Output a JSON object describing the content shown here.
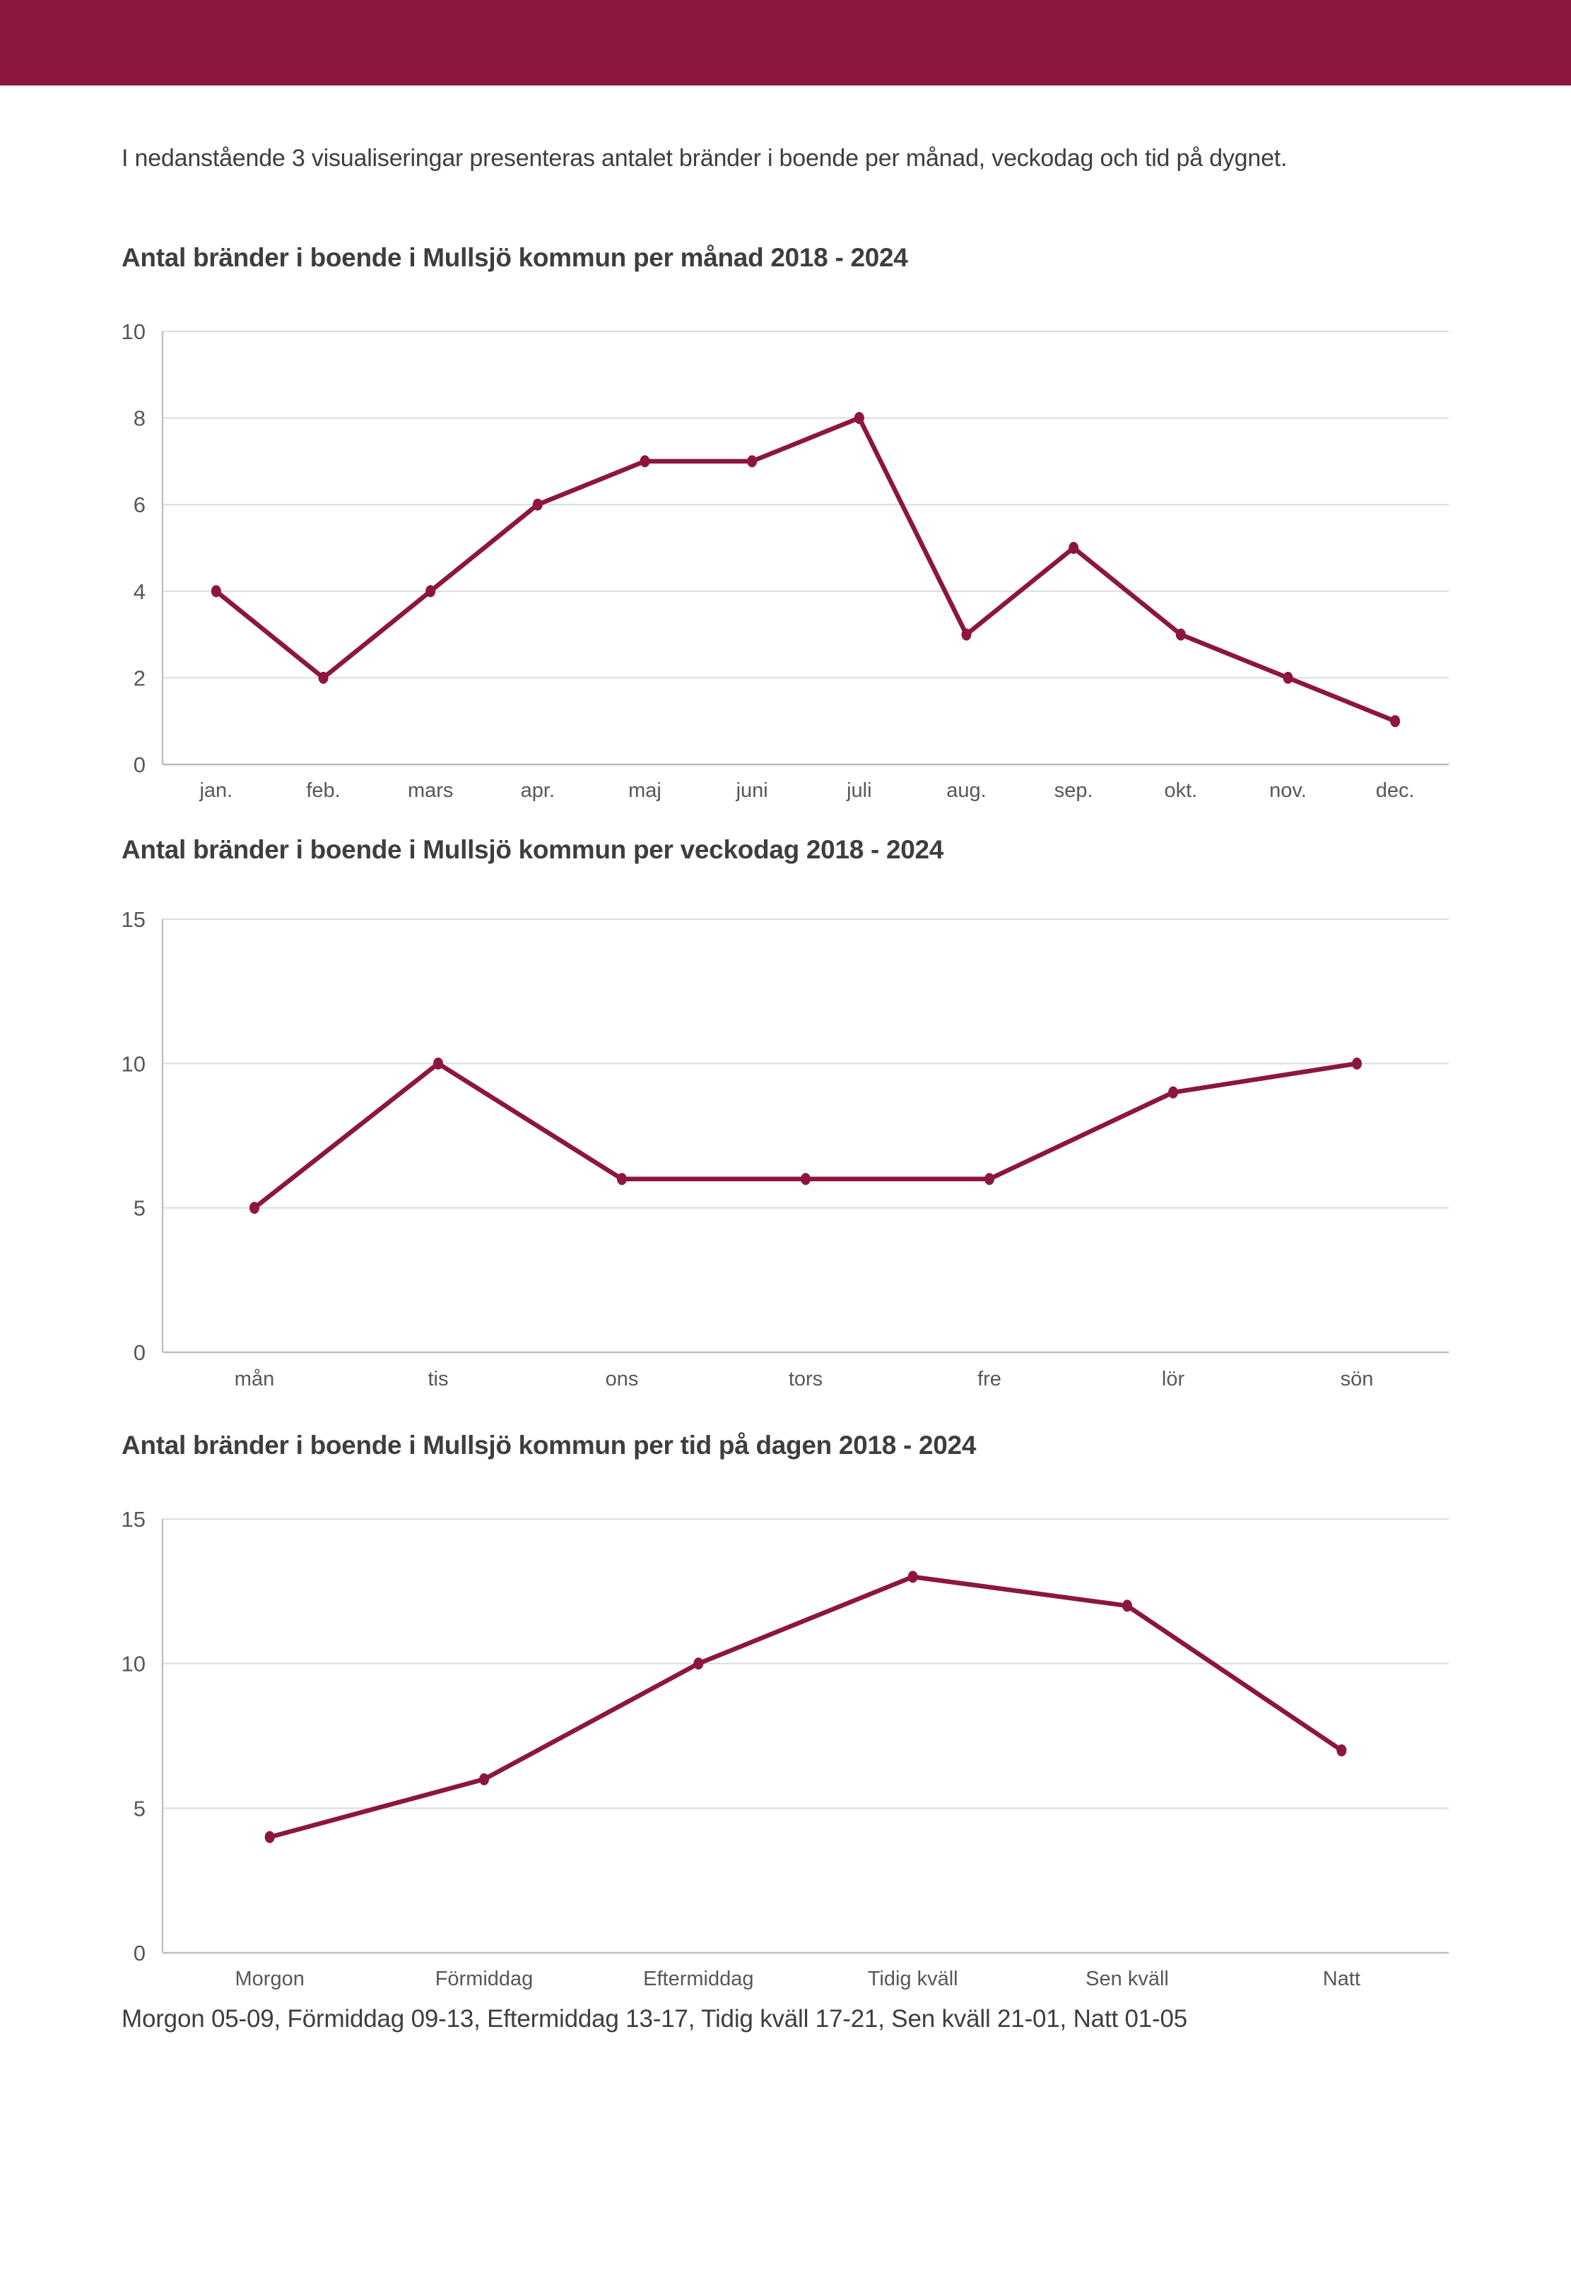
{
  "page": {
    "intro": "I nedanstående 3 visualiseringar presenteras antalet bränder i boende per månad, veckodag och tid på dygnet.",
    "footnote": "Morgon 05-09, Förmiddag 09-13, Eftermiddag 13-17, Tidig kväll 17-21, Sen kväll 21-01, Natt 01-05"
  },
  "colors": {
    "header_bar": "#8C163E",
    "line": "#8C163E",
    "point": "#8C163E",
    "grid": "#DCDCDC",
    "axis": "#C2C2C2",
    "zero_axis": "#BDBDBD",
    "tick_text": "#56575A",
    "body_text": "#3E3E40"
  },
  "chart_data": [
    {
      "type": "line",
      "title": "Antal bränder i boende i Mullsjö kommun per månad 2018 - 2024",
      "categories": [
        "jan.",
        "feb.",
        "mars",
        "apr.",
        "maj",
        "juni",
        "juli",
        "aug.",
        "sep.",
        "okt.",
        "nov.",
        "dec."
      ],
      "values": [
        4,
        2,
        4,
        6,
        7,
        7,
        8,
        3,
        5,
        3,
        2,
        1
      ],
      "xlabel": "",
      "ylabel": "",
      "ylim": [
        0,
        10
      ],
      "yticks": [
        0,
        2,
        4,
        6,
        8,
        10
      ],
      "grid": true,
      "legend": "none"
    },
    {
      "type": "line",
      "title": "Antal bränder i boende i Mullsjö kommun per veckodag 2018 - 2024",
      "categories": [
        "mån",
        "tis",
        "ons",
        "tors",
        "fre",
        "lör",
        "sön"
      ],
      "values": [
        5,
        10,
        6,
        6,
        6,
        9,
        10
      ],
      "xlabel": "",
      "ylabel": "",
      "ylim": [
        0,
        15
      ],
      "yticks": [
        0,
        5,
        10,
        15
      ],
      "grid": true,
      "legend": "none"
    },
    {
      "type": "line",
      "title": "Antal bränder i boende i Mullsjö kommun per tid på dagen 2018 - 2024",
      "categories": [
        "Morgon",
        "Förmiddag",
        "Eftermiddag",
        "Tidig kväll",
        "Sen kväll",
        "Natt"
      ],
      "values": [
        4,
        6,
        10,
        13,
        12,
        7
      ],
      "xlabel": "",
      "ylabel": "",
      "ylim": [
        0,
        15
      ],
      "yticks": [
        0,
        5,
        10,
        15
      ],
      "grid": true,
      "legend": "none"
    }
  ]
}
